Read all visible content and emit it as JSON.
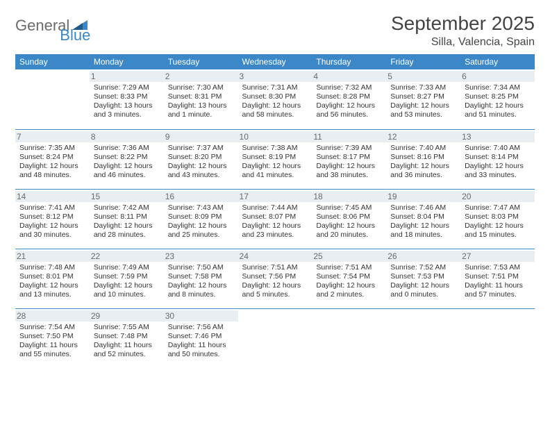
{
  "logo": {
    "word1": "General",
    "word2": "Blue"
  },
  "title": "September 2025",
  "location": "Silla, Valencia, Spain",
  "colors": {
    "header_bg": "#3b87c8",
    "header_text": "#ffffff",
    "daynum_bg": "#e9eef2",
    "daynum_text": "#6b6b6b",
    "border": "#3b87c8",
    "body_text": "#333333",
    "title_text": "#444444",
    "logo_gray": "#6b6b6b",
    "logo_blue": "#3b87c8",
    "page_bg": "#ffffff"
  },
  "typography": {
    "month_title_size": 28,
    "location_size": 16,
    "weekday_size": 12,
    "daynum_size": 12,
    "cell_size": 10.5,
    "logo_size": 22
  },
  "weekdays": [
    "Sunday",
    "Monday",
    "Tuesday",
    "Wednesday",
    "Thursday",
    "Friday",
    "Saturday"
  ],
  "weeks": [
    [
      {
        "day": "",
        "lines": []
      },
      {
        "day": "1",
        "lines": [
          "Sunrise: 7:29 AM",
          "Sunset: 8:33 PM",
          "Daylight: 13 hours and 3 minutes."
        ]
      },
      {
        "day": "2",
        "lines": [
          "Sunrise: 7:30 AM",
          "Sunset: 8:31 PM",
          "Daylight: 13 hours and 1 minute."
        ]
      },
      {
        "day": "3",
        "lines": [
          "Sunrise: 7:31 AM",
          "Sunset: 8:30 PM",
          "Daylight: 12 hours and 58 minutes."
        ]
      },
      {
        "day": "4",
        "lines": [
          "Sunrise: 7:32 AM",
          "Sunset: 8:28 PM",
          "Daylight: 12 hours and 56 minutes."
        ]
      },
      {
        "day": "5",
        "lines": [
          "Sunrise: 7:33 AM",
          "Sunset: 8:27 PM",
          "Daylight: 12 hours and 53 minutes."
        ]
      },
      {
        "day": "6",
        "lines": [
          "Sunrise: 7:34 AM",
          "Sunset: 8:25 PM",
          "Daylight: 12 hours and 51 minutes."
        ]
      }
    ],
    [
      {
        "day": "7",
        "lines": [
          "Sunrise: 7:35 AM",
          "Sunset: 8:24 PM",
          "Daylight: 12 hours and 48 minutes."
        ]
      },
      {
        "day": "8",
        "lines": [
          "Sunrise: 7:36 AM",
          "Sunset: 8:22 PM",
          "Daylight: 12 hours and 46 minutes."
        ]
      },
      {
        "day": "9",
        "lines": [
          "Sunrise: 7:37 AM",
          "Sunset: 8:20 PM",
          "Daylight: 12 hours and 43 minutes."
        ]
      },
      {
        "day": "10",
        "lines": [
          "Sunrise: 7:38 AM",
          "Sunset: 8:19 PM",
          "Daylight: 12 hours and 41 minutes."
        ]
      },
      {
        "day": "11",
        "lines": [
          "Sunrise: 7:39 AM",
          "Sunset: 8:17 PM",
          "Daylight: 12 hours and 38 minutes."
        ]
      },
      {
        "day": "12",
        "lines": [
          "Sunrise: 7:40 AM",
          "Sunset: 8:16 PM",
          "Daylight: 12 hours and 36 minutes."
        ]
      },
      {
        "day": "13",
        "lines": [
          "Sunrise: 7:40 AM",
          "Sunset: 8:14 PM",
          "Daylight: 12 hours and 33 minutes."
        ]
      }
    ],
    [
      {
        "day": "14",
        "lines": [
          "Sunrise: 7:41 AM",
          "Sunset: 8:12 PM",
          "Daylight: 12 hours and 30 minutes."
        ]
      },
      {
        "day": "15",
        "lines": [
          "Sunrise: 7:42 AM",
          "Sunset: 8:11 PM",
          "Daylight: 12 hours and 28 minutes."
        ]
      },
      {
        "day": "16",
        "lines": [
          "Sunrise: 7:43 AM",
          "Sunset: 8:09 PM",
          "Daylight: 12 hours and 25 minutes."
        ]
      },
      {
        "day": "17",
        "lines": [
          "Sunrise: 7:44 AM",
          "Sunset: 8:07 PM",
          "Daylight: 12 hours and 23 minutes."
        ]
      },
      {
        "day": "18",
        "lines": [
          "Sunrise: 7:45 AM",
          "Sunset: 8:06 PM",
          "Daylight: 12 hours and 20 minutes."
        ]
      },
      {
        "day": "19",
        "lines": [
          "Sunrise: 7:46 AM",
          "Sunset: 8:04 PM",
          "Daylight: 12 hours and 18 minutes."
        ]
      },
      {
        "day": "20",
        "lines": [
          "Sunrise: 7:47 AM",
          "Sunset: 8:03 PM",
          "Daylight: 12 hours and 15 minutes."
        ]
      }
    ],
    [
      {
        "day": "21",
        "lines": [
          "Sunrise: 7:48 AM",
          "Sunset: 8:01 PM",
          "Daylight: 12 hours and 13 minutes."
        ]
      },
      {
        "day": "22",
        "lines": [
          "Sunrise: 7:49 AM",
          "Sunset: 7:59 PM",
          "Daylight: 12 hours and 10 minutes."
        ]
      },
      {
        "day": "23",
        "lines": [
          "Sunrise: 7:50 AM",
          "Sunset: 7:58 PM",
          "Daylight: 12 hours and 8 minutes."
        ]
      },
      {
        "day": "24",
        "lines": [
          "Sunrise: 7:51 AM",
          "Sunset: 7:56 PM",
          "Daylight: 12 hours and 5 minutes."
        ]
      },
      {
        "day": "25",
        "lines": [
          "Sunrise: 7:51 AM",
          "Sunset: 7:54 PM",
          "Daylight: 12 hours and 2 minutes."
        ]
      },
      {
        "day": "26",
        "lines": [
          "Sunrise: 7:52 AM",
          "Sunset: 7:53 PM",
          "Daylight: 12 hours and 0 minutes."
        ]
      },
      {
        "day": "27",
        "lines": [
          "Sunrise: 7:53 AM",
          "Sunset: 7:51 PM",
          "Daylight: 11 hours and 57 minutes."
        ]
      }
    ],
    [
      {
        "day": "28",
        "lines": [
          "Sunrise: 7:54 AM",
          "Sunset: 7:50 PM",
          "Daylight: 11 hours and 55 minutes."
        ]
      },
      {
        "day": "29",
        "lines": [
          "Sunrise: 7:55 AM",
          "Sunset: 7:48 PM",
          "Daylight: 11 hours and 52 minutes."
        ]
      },
      {
        "day": "30",
        "lines": [
          "Sunrise: 7:56 AM",
          "Sunset: 7:46 PM",
          "Daylight: 11 hours and 50 minutes."
        ]
      },
      {
        "day": "",
        "lines": []
      },
      {
        "day": "",
        "lines": []
      },
      {
        "day": "",
        "lines": []
      },
      {
        "day": "",
        "lines": []
      }
    ]
  ]
}
